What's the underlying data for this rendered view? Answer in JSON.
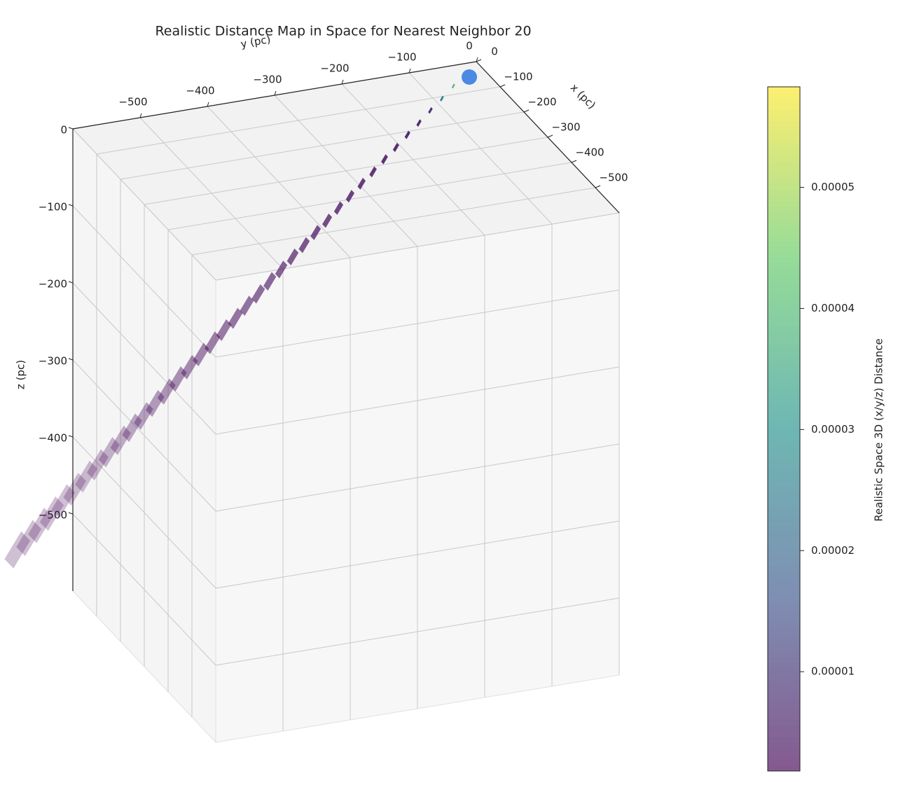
{
  "chart_data": {
    "type": "scatter3d",
    "title": "Realistic Distance Map in Space for Nearest Neighbor 20",
    "xlabel": "x (pc)",
    "ylabel": "y  (pc)",
    "zlabel": "z (pc)",
    "xlim": [
      -600,
      0
    ],
    "ylim": [
      -600,
      0
    ],
    "zlim": [
      -600,
      0
    ],
    "xticks": [
      0,
      {
        "value": -100,
        "label": "−100"
      },
      {
        "value": -200,
        "label": "−200"
      },
      {
        "value": -300,
        "label": "−300"
      },
      {
        "value": -400,
        "label": "−400"
      },
      {
        "value": -500,
        "label": "−500"
      }
    ],
    "yticks": [
      0,
      {
        "value": -100,
        "label": "−100"
      },
      {
        "value": -200,
        "label": "−200"
      },
      {
        "value": -300,
        "label": "−300"
      },
      {
        "value": -400,
        "label": "−400"
      },
      {
        "value": -500,
        "label": "−500"
      }
    ],
    "zticks": [
      0,
      {
        "value": -100,
        "label": "−100"
      },
      {
        "value": -200,
        "label": "−200"
      },
      {
        "value": -300,
        "label": "−300"
      },
      {
        "value": -400,
        "label": "−400"
      },
      {
        "value": -500,
        "label": "−500"
      }
    ],
    "grid": true,
    "target": {
      "x": 0,
      "y": 0,
      "z": 0,
      "color": "#4a89e4"
    },
    "x": [
      3,
      6,
      9,
      12,
      15,
      18,
      21,
      24,
      27,
      30,
      33,
      36,
      39,
      42,
      45,
      48,
      51,
      54,
      57,
      60,
      63,
      66,
      69,
      72,
      75,
      78,
      81,
      84,
      87,
      90,
      93,
      96,
      99,
      102,
      105,
      108,
      111,
      114,
      117,
      120
    ],
    "y": [
      -16,
      -32,
      -48,
      -64,
      -80,
      -96,
      -112,
      -128,
      -144,
      -160,
      -176,
      -192,
      -208,
      -224,
      -240,
      -256,
      -272,
      -288,
      -304,
      -320,
      -336,
      -352,
      -368,
      -384,
      -400,
      -416,
      -432,
      -448,
      -464,
      -480,
      -496,
      -512,
      -528,
      -544,
      -560,
      -576,
      -592,
      -608,
      -624,
      -640
    ],
    "z": [
      -15,
      -29,
      -44,
      -58,
      -73,
      -87,
      -102,
      -116,
      -131,
      -145,
      -160,
      -174,
      -189,
      -203,
      -218,
      -232,
      -247,
      -261,
      -276,
      -290,
      -305,
      -319,
      -334,
      -348,
      -363,
      -377,
      -392,
      -406,
      -421,
      -435,
      -450,
      -464,
      -479,
      -493,
      -508,
      -522,
      -537,
      -551,
      -566,
      -580
    ],
    "values": [
      5.7e-05,
      4e-05,
      2.5e-05,
      8e-06,
      6e-06,
      5e-06,
      4e-06,
      4e-06,
      4e-06,
      4e-06,
      4e-06,
      4e-06,
      4e-06,
      4e-06,
      4e-06,
      4e-06,
      4e-06,
      4e-06,
      4e-06,
      4e-06,
      3e-06,
      3e-06,
      3e-06,
      3e-06,
      3e-06,
      3e-06,
      3e-06,
      3e-06,
      3e-06,
      3e-06,
      3e-06,
      3e-06,
      2e-06,
      2e-06,
      2e-06,
      2e-06,
      2e-06,
      2e-06,
      2e-06,
      2e-06
    ],
    "colormap": "viridis",
    "clim": [
      1.8e-06,
      5.83e-05
    ],
    "colorbar_label": "Realistic Space 3D (x/y/z) Distance",
    "colorbar_ticks": [
      {
        "value": 1e-05,
        "label": "0.00001"
      },
      {
        "value": 2e-05,
        "label": "0.00002"
      },
      {
        "value": 3e-05,
        "label": "0.00003"
      },
      {
        "value": 4e-05,
        "label": "0.00004"
      },
      {
        "value": 5e-05,
        "label": "0.00005"
      }
    ]
  }
}
